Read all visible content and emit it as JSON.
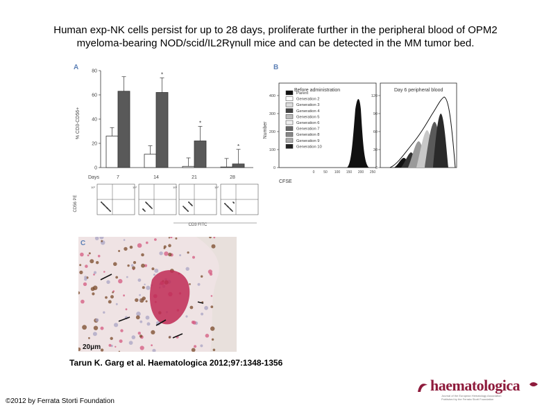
{
  "slide": {
    "title_line1": "Human exp-NK cells persist for up to 28 days, proliferate further in the peripheral blood of OPM2",
    "title_line2": "myeloma-bearing NOD/scid/IL2Rγnull mice and can be detected in the MM tumor bed.",
    "citation": "Tarun K. Garg et al. Haematologica 2012;97:1348-1356",
    "copyright": "©2012 by Ferrata Storti Foundation",
    "logo_text": "haematologica",
    "logo_tagline_1": "Journal of the European Hematology Association",
    "logo_tagline_2": "Published by the Ferrata Storti Foundation"
  },
  "panel_a": {
    "label": "A",
    "ylabel": "% CD3-CD56+",
    "days_label": "Days",
    "flow_ylabel": "CD56 PE",
    "flow_xlabel": "CD3 FITC",
    "flow_tick": "10³",
    "chart_data": {
      "type": "bar",
      "categories": [
        "7",
        "14",
        "21",
        "28"
      ],
      "series": [
        {
          "values": [
            26,
            11,
            1,
            0.5
          ],
          "errors": [
            7,
            4,
            0.5,
            0.3
          ],
          "color": "#ffffff"
        },
        {
          "values": [
            63,
            62,
            22,
            3
          ],
          "errors": [
            8,
            12,
            8,
            2
          ],
          "color": "#595959"
        }
      ],
      "yticks": [
        "0",
        "20",
        "40",
        "60",
        "80"
      ],
      "ylim": [
        0,
        80
      ],
      "annotations": [
        "*",
        "*",
        "*"
      ]
    }
  },
  "panel_b": {
    "label": "B",
    "left_title": "Before administration",
    "right_title": "Day 6 peripheral blood",
    "ylabel": "Number",
    "xlabel": "CFSE",
    "left_yticks": [
      "0",
      "100",
      "200",
      "300",
      "400"
    ],
    "right_yticks": [
      "0",
      "30",
      "60",
      "90",
      "120"
    ],
    "left_xticks": [
      "0",
      "50",
      "100",
      "150",
      "200",
      "250"
    ],
    "legend": [
      "Parent",
      "Generation 2",
      "Generation 3",
      "Generation 4",
      "Generation 5",
      "Generation 6",
      "Generation 7",
      "Generation 8",
      "Generation 9",
      "Generation 10"
    ]
  },
  "panel_c": {
    "label": "C",
    "scale_bar": "20μm"
  }
}
